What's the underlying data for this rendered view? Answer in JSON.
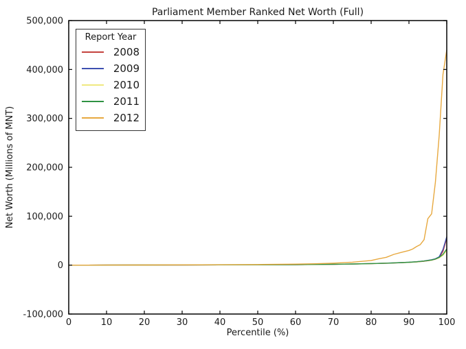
{
  "figure_title": "Parliament Member Ranked Net Worth (Full)",
  "chart_data": {
    "type": "line",
    "title": "Parliament Member Ranked Net Worth (Full)",
    "xlabel": "Percentile (%)",
    "ylabel": "Net Worth (Millions of MNT)",
    "xlim": [
      0,
      100
    ],
    "ylim": [
      -100000,
      500000
    ],
    "x_ticks": [
      0,
      10,
      20,
      30,
      40,
      50,
      60,
      70,
      80,
      90,
      100
    ],
    "y_ticks": [
      -100000,
      0,
      100000,
      200000,
      300000,
      400000,
      500000
    ],
    "grid": false,
    "frame_color": "#000000",
    "legend": {
      "title": "Report Year",
      "position": "upper-left"
    },
    "series": [
      {
        "name": "2008",
        "color": "#c4413c",
        "x": [
          0,
          10,
          20,
          30,
          40,
          50,
          60,
          65,
          70,
          75,
          80,
          85,
          90,
          92,
          94,
          96,
          97,
          98,
          99,
          100
        ],
        "y": [
          0,
          100,
          200,
          300,
          450,
          650,
          1000,
          1300,
          1700,
          2200,
          3000,
          4000,
          5500,
          6500,
          8000,
          10000,
          12000,
          15000,
          28000,
          55000
        ]
      },
      {
        "name": "2009",
        "color": "#3c4fb0",
        "x": [
          0,
          10,
          20,
          30,
          40,
          50,
          60,
          65,
          70,
          75,
          80,
          85,
          90,
          92,
          94,
          96,
          97,
          98,
          99,
          100
        ],
        "y": [
          0,
          120,
          230,
          350,
          500,
          700,
          1100,
          1400,
          1800,
          2400,
          3200,
          4300,
          5800,
          7000,
          8500,
          11000,
          13000,
          17000,
          32000,
          58000
        ]
      },
      {
        "name": "2010",
        "color": "#efe97f",
        "x": [
          0,
          10,
          20,
          30,
          40,
          50,
          60,
          65,
          70,
          75,
          80,
          85,
          90,
          92,
          94,
          96,
          97,
          98,
          99,
          100
        ],
        "y": [
          0,
          100,
          200,
          320,
          470,
          680,
          1050,
          1350,
          1750,
          2300,
          3100,
          4100,
          5600,
          6600,
          8200,
          10000,
          12000,
          15000,
          20000,
          30000
        ]
      },
      {
        "name": "2011",
        "color": "#2e9142",
        "x": [
          0,
          10,
          20,
          30,
          40,
          50,
          60,
          65,
          70,
          75,
          80,
          85,
          90,
          92,
          94,
          96,
          97,
          98,
          99,
          100
        ],
        "y": [
          0,
          110,
          220,
          340,
          480,
          700,
          1100,
          1400,
          1800,
          2400,
          3200,
          4200,
          5800,
          6800,
          8400,
          10500,
          12500,
          16000,
          22000,
          33000
        ]
      },
      {
        "name": "2012",
        "color": "#e7a83e",
        "x": [
          0,
          10,
          20,
          30,
          40,
          50,
          60,
          65,
          70,
          75,
          80,
          82,
          84,
          86,
          88,
          90,
          91,
          92,
          93,
          94,
          95,
          96,
          97,
          98,
          99,
          100
        ],
        "y": [
          0,
          150,
          300,
          500,
          800,
          1200,
          2000,
          2700,
          4000,
          6000,
          9500,
          13000,
          16000,
          22000,
          26000,
          30000,
          33000,
          38000,
          42000,
          52000,
          95000,
          105000,
          170000,
          265000,
          390000,
          440000
        ]
      }
    ]
  }
}
